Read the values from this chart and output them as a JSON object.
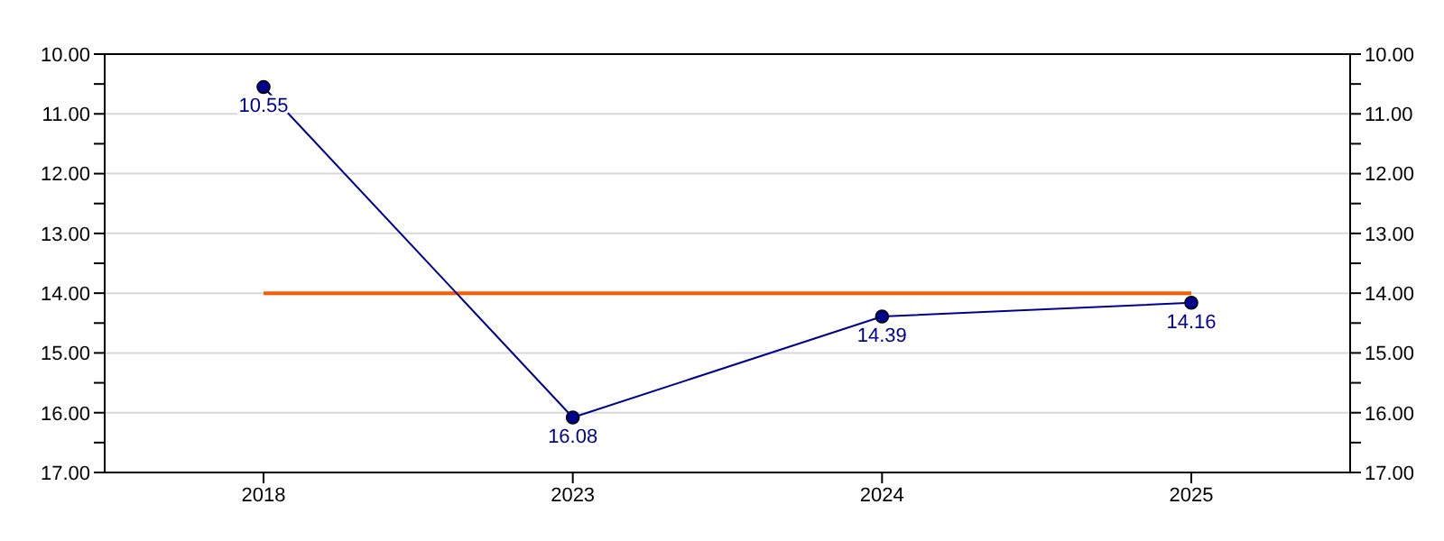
{
  "chart_data": {
    "type": "line",
    "categories": [
      "2018",
      "2023",
      "2024",
      "2025"
    ],
    "series": [
      {
        "color": "#ff5a00",
        "marker": "none",
        "values": [
          14,
          14,
          14,
          14
        ]
      },
      {
        "color": "#000090",
        "marker": "circle",
        "values": [
          10.55,
          16.08,
          14.39,
          14.16
        ],
        "value_labels": [
          "10.55",
          "16.08",
          "14.39",
          "14.16"
        ]
      }
    ],
    "ylim": [
      17,
      10
    ],
    "yticks": [
      {
        "value": 10,
        "label": "10.00"
      },
      {
        "value": 10.5,
        "label": null
      },
      {
        "value": 11,
        "label": "11.00"
      },
      {
        "value": 11.5,
        "label": null
      },
      {
        "value": 12,
        "label": "12.00"
      },
      {
        "value": 12.5,
        "label": null
      },
      {
        "value": 13,
        "label": "13.00"
      },
      {
        "value": 13.5,
        "label": null
      },
      {
        "value": 14,
        "label": "14.00"
      },
      {
        "value": 14.5,
        "label": null
      },
      {
        "value": 15,
        "label": "15.00"
      },
      {
        "value": 15.5,
        "label": null
      },
      {
        "value": 16,
        "label": "16.00"
      },
      {
        "value": 16.5,
        "label": null
      },
      {
        "value": 17,
        "label": "17.00"
      }
    ],
    "y2lim": [
      17,
      10
    ],
    "y2ticks": [
      {
        "value": 10,
        "label": "10.00"
      },
      {
        "value": 10.5,
        "label": null
      },
      {
        "value": 11,
        "label": "11.00"
      },
      {
        "value": 11.5,
        "label": null
      },
      {
        "value": 12,
        "label": "12.00"
      },
      {
        "value": 12.5,
        "label": null
      },
      {
        "value": 13,
        "label": "13.00"
      },
      {
        "value": 13.5,
        "label": null
      },
      {
        "value": 14,
        "label": "14.00"
      },
      {
        "value": 14.5,
        "label": null
      },
      {
        "value": 15,
        "label": "15.00"
      },
      {
        "value": 15.5,
        "label": null
      },
      {
        "value": 16,
        "label": "16.00"
      },
      {
        "value": 16.5,
        "label": null
      },
      {
        "value": 17,
        "label": "17.00"
      }
    ],
    "grid": "y",
    "legend": false
  }
}
